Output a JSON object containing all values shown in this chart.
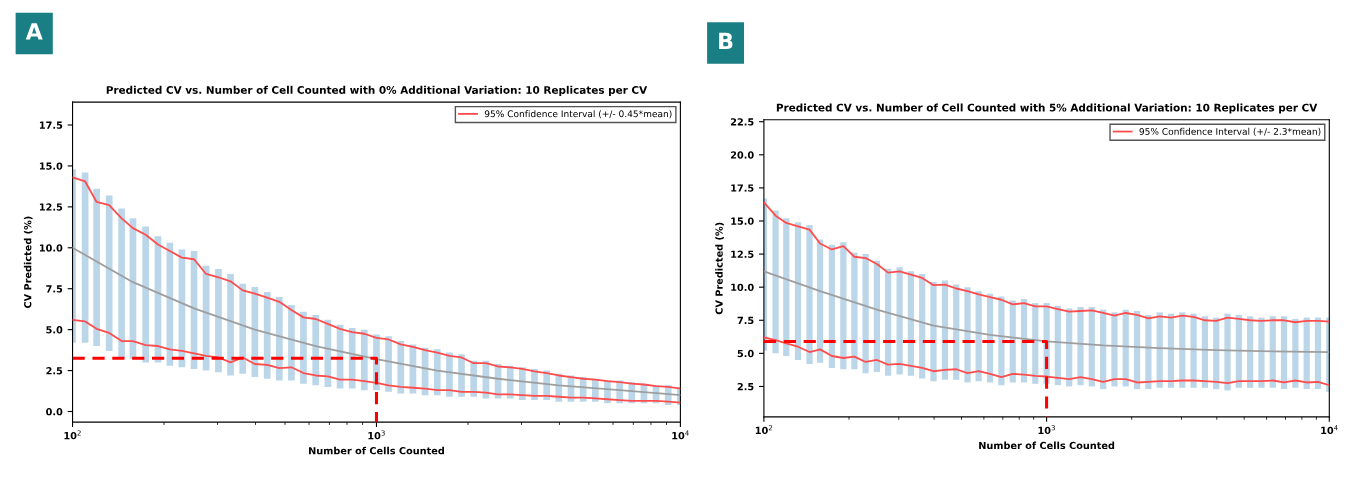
{
  "chart_data": [
    {
      "type": "line",
      "title": "Predicted CV vs. Number of Cell Counted with 0% Additional Variation: 10 Replicates per CV",
      "xlabel": "Number of Cells Counted",
      "ylabel": "CV Predicted (%)",
      "annotations": [
        "A"
      ],
      "log": "x",
      "legend": "top right",
      "grid": false,
      "xlim": [
        100,
        10000
      ],
      "xticks": [
        {
          "value": 100,
          "label": "10$^{2}$"
        },
        {
          "value": 1000,
          "label": "10$^{3}$"
        },
        {
          "value": 10000,
          "label": "10$^{4}$"
        }
      ],
      "ylim": [
        -0.65,
        18.9
      ],
      "yticks": [
        {
          "value": 0,
          "label": "0.0"
        },
        {
          "value": 2.5,
          "label": "2.5"
        },
        {
          "value": 5,
          "label": "5.0"
        },
        {
          "value": 7.5,
          "label": "7.5"
        },
        {
          "value": 10,
          "label": "10.0"
        },
        {
          "value": 12.5,
          "label": "12.5"
        },
        {
          "value": 15,
          "label": "15.0"
        },
        {
          "value": 17.5,
          "label": "17.5"
        }
      ],
      "x": [
        100,
        110,
        120,
        132,
        145,
        158,
        174,
        191,
        209,
        229,
        251,
        275,
        302,
        331,
        363,
        398,
        437,
        479,
        525,
        575,
        631,
        692,
        759,
        832,
        912,
        1000,
        1096,
        1202,
        1318,
        1445,
        1585,
        1738,
        1905,
        2089,
        2291,
        2512,
        2754,
        3020,
        3311,
        3631,
        3981,
        4365,
        4786,
        5248,
        5754,
        6310,
        6918,
        7586,
        8318,
        9120,
        10000
      ],
      "series": [
        {
          "type": "bar",
          "color": "#1f77b4",
          "base": [
            4.2,
            4.2,
            4.0,
            3.7,
            3.3,
            3.2,
            3.0,
            3.0,
            2.8,
            2.7,
            2.6,
            2.5,
            2.4,
            2.2,
            2.3,
            2.1,
            2.0,
            1.9,
            1.9,
            1.7,
            1.6,
            1.5,
            1.4,
            1.4,
            1.3,
            1.3,
            1.2,
            1.1,
            1.1,
            1.0,
            1.0,
            0.9,
            0.9,
            0.9,
            0.8,
            0.8,
            0.8,
            0.7,
            0.7,
            0.7,
            0.6,
            0.6,
            0.6,
            0.6,
            0.5,
            0.5,
            0.5,
            0.5,
            0.5,
            0.4,
            0.4
          ],
          "values": [
            10.6,
            10.4,
            9.6,
            9.5,
            9.1,
            8.6,
            8.3,
            7.7,
            7.5,
            7.2,
            7.2,
            6.4,
            6.3,
            6.2,
            5.5,
            5.5,
            5.3,
            5.1,
            4.6,
            4.4,
            4.3,
            4.1,
            3.9,
            3.7,
            3.7,
            3.4,
            3.4,
            3.2,
            3.0,
            2.9,
            2.8,
            2.7,
            2.6,
            2.2,
            2.3,
            2.1,
            2.0,
            2.0,
            1.9,
            1.8,
            1.7,
            1.6,
            1.5,
            1.4,
            1.4,
            1.4,
            1.3,
            1.2,
            1.1,
            1.2,
            1.1
          ]
        },
        {
          "color": "#9e9e9e",
          "x": [
            100,
            158,
            251,
            398,
            631,
            1000,
            1585,
            2512,
            3981,
            6310,
            10000
          ],
          "values": [
            10.0,
            7.9,
            6.3,
            5.0,
            4.0,
            3.2,
            2.5,
            2.0,
            1.6,
            1.3,
            1.0
          ]
        },
        {
          "name": "95% Confidence Interval (+/- 0.45*mean)",
          "color": "#ff4d4d",
          "values": [
            14.3,
            14.05,
            12.8,
            12.6,
            11.8,
            11.2,
            10.8,
            10.2,
            9.8,
            9.4,
            9.3,
            8.4,
            8.2,
            7.95,
            7.4,
            7.2,
            6.95,
            6.7,
            6.2,
            5.75,
            5.65,
            5.35,
            5.05,
            4.85,
            4.75,
            4.5,
            4.4,
            4.1,
            3.95,
            3.75,
            3.6,
            3.4,
            3.3,
            2.95,
            2.95,
            2.75,
            2.7,
            2.6,
            2.45,
            2.35,
            2.2,
            2.1,
            2.0,
            1.95,
            1.85,
            1.8,
            1.7,
            1.65,
            1.55,
            1.5,
            1.4
          ]
        },
        {
          "color": "#ff4d4d",
          "values": [
            5.6,
            5.5,
            5.05,
            4.8,
            4.3,
            4.3,
            4.05,
            4.0,
            3.8,
            3.7,
            3.55,
            3.4,
            3.3,
            3.0,
            3.3,
            2.9,
            2.85,
            2.65,
            2.7,
            2.35,
            2.2,
            2.15,
            1.95,
            1.95,
            1.85,
            1.75,
            1.6,
            1.5,
            1.45,
            1.4,
            1.3,
            1.3,
            1.2,
            1.2,
            1.15,
            1.05,
            1.05,
            1.0,
            0.95,
            0.95,
            0.9,
            0.85,
            0.85,
            0.8,
            0.75,
            0.7,
            0.65,
            0.65,
            0.65,
            0.6,
            0.55
          ]
        },
        {
          "color": "#ff0000",
          "line_style": "dashed",
          "x": [
            100,
            1000,
            1000
          ],
          "values": [
            3.25,
            3.25,
            -0.65
          ]
        }
      ]
    },
    {
      "type": "line",
      "title": "Predicted CV vs. Number of Cell Counted with 5% Additional Variation: 10 Replicates per CV",
      "xlabel": "Number of Cells Counted",
      "ylabel": "CV Predicted (%)",
      "annotations": [
        "B"
      ],
      "log": "x",
      "legend": "top right",
      "grid": false,
      "xlim": [
        100,
        10000
      ],
      "xticks": [
        {
          "value": 100,
          "label": "10$^{2}$"
        },
        {
          "value": 1000,
          "label": "10$^{3}$"
        },
        {
          "value": 10000,
          "label": "10$^{4}$"
        }
      ],
      "ylim": [
        0.2,
        22.65
      ],
      "yticks": [
        2.5,
        {
          "value": 5,
          "label": "5.0"
        },
        7.5,
        {
          "value": 10,
          "label": "10.0"
        },
        12.5,
        {
          "value": 15,
          "label": "15.0"
        },
        17.5,
        {
          "value": 20,
          "label": "20.0"
        },
        22.5
      ],
      "x": [
        100,
        110,
        120,
        132,
        145,
        158,
        174,
        191,
        209,
        229,
        251,
        275,
        302,
        331,
        363,
        398,
        437,
        479,
        525,
        575,
        631,
        692,
        759,
        832,
        912,
        1000,
        1096,
        1202,
        1318,
        1445,
        1585,
        1738,
        1905,
        2089,
        2291,
        2512,
        2754,
        3020,
        3311,
        3631,
        3981,
        4365,
        4786,
        5248,
        5754,
        6310,
        6918,
        7586,
        8318,
        9120,
        10000
      ],
      "series": [
        {
          "type": "bar",
          "color": "#1f77b4",
          "base": [
            5.2,
            5.0,
            4.8,
            4.5,
            4.2,
            4.3,
            3.9,
            3.8,
            3.8,
            3.5,
            3.6,
            3.3,
            3.4,
            3.3,
            3.1,
            2.9,
            3.0,
            3.0,
            2.8,
            2.9,
            2.8,
            2.6,
            2.8,
            2.8,
            2.7,
            2.7,
            2.6,
            2.5,
            2.6,
            2.5,
            2.3,
            2.5,
            2.5,
            2.3,
            2.3,
            2.4,
            2.4,
            2.4,
            2.4,
            2.4,
            2.3,
            2.2,
            2.4,
            2.4,
            2.4,
            2.4,
            2.3,
            2.4,
            2.3,
            2.3,
            2.1
          ],
          "values": [
            11.5,
            10.8,
            10.4,
            10.4,
            10.5,
            9.3,
            9.3,
            9.6,
            8.8,
            9.0,
            8.4,
            8.1,
            8.1,
            7.9,
            7.9,
            7.5,
            7.5,
            7.2,
            7.2,
            6.8,
            6.7,
            6.7,
            6.2,
            6.3,
            6.1,
            6.1,
            6.0,
            5.9,
            5.9,
            6.0,
            6.0,
            5.6,
            5.8,
            5.9,
            5.6,
            5.7,
            5.6,
            5.7,
            5.6,
            5.4,
            5.4,
            5.8,
            5.5,
            5.4,
            5.3,
            5.4,
            5.5,
            5.2,
            5.4,
            5.4,
            5.6
          ]
        },
        {
          "color": "#9e9e9e",
          "x": [
            100,
            158,
            251,
            398,
            631,
            1000,
            1585,
            2512,
            3981,
            6310,
            10000
          ],
          "values": [
            11.2,
            9.7,
            8.3,
            7.1,
            6.4,
            5.9,
            5.6,
            5.4,
            5.25,
            5.15,
            5.1
          ]
        },
        {
          "name": "95% Confidence Interval (+/- 2.3*mean)",
          "color": "#ff4d4d",
          "values": [
            16.4,
            15.4,
            14.85,
            14.6,
            14.35,
            13.3,
            12.85,
            13.1,
            12.3,
            12.2,
            11.75,
            11.1,
            11.2,
            10.95,
            10.7,
            10.15,
            10.2,
            9.9,
            9.7,
            9.45,
            9.25,
            9.05,
            8.7,
            8.8,
            8.55,
            8.55,
            8.35,
            8.15,
            8.2,
            8.25,
            8.05,
            7.85,
            8.05,
            7.9,
            7.65,
            7.8,
            7.7,
            7.85,
            7.75,
            7.5,
            7.45,
            7.7,
            7.6,
            7.5,
            7.45,
            7.5,
            7.5,
            7.35,
            7.45,
            7.45,
            7.4
          ]
        },
        {
          "color": "#ff4d4d",
          "values": [
            6.2,
            6.0,
            5.75,
            5.5,
            5.1,
            5.3,
            4.8,
            4.65,
            4.75,
            4.35,
            4.5,
            4.15,
            4.2,
            4.05,
            3.9,
            3.65,
            3.75,
            3.8,
            3.5,
            3.65,
            3.45,
            3.2,
            3.45,
            3.4,
            3.3,
            3.25,
            3.15,
            3.05,
            3.2,
            3.05,
            2.85,
            3.05,
            3.05,
            2.8,
            2.85,
            2.9,
            2.9,
            2.95,
            2.95,
            2.9,
            2.85,
            2.75,
            2.9,
            2.9,
            2.9,
            2.95,
            2.8,
            2.95,
            2.8,
            2.85,
            2.6
          ]
        },
        {
          "color": "#ff0000",
          "line_style": "dashed",
          "x": [
            100,
            1000,
            1000
          ],
          "values": [
            5.9,
            5.9,
            0.2
          ]
        }
      ]
    }
  ]
}
